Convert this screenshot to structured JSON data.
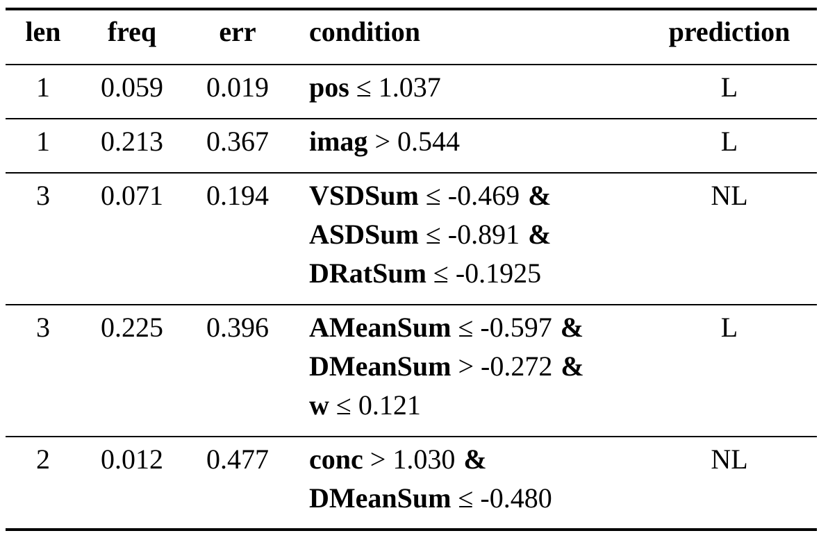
{
  "table": {
    "headers": [
      "len",
      "freq",
      "err",
      "condition",
      "prediction"
    ],
    "rows": [
      {
        "len": "1",
        "freq": "0.059",
        "err": "0.019",
        "condition": [
          {
            "feature": "pos",
            "op": "≤",
            "value": "1.037"
          }
        ],
        "prediction": "L"
      },
      {
        "len": "1",
        "freq": "0.213",
        "err": "0.367",
        "condition": [
          {
            "feature": "imag",
            "op": ">",
            "value": "0.544"
          }
        ],
        "prediction": "L"
      },
      {
        "len": "3",
        "freq": "0.071",
        "err": "0.194",
        "condition": [
          {
            "feature": "VSDSum",
            "op": "≤",
            "value": "-0.469",
            "and": "&"
          },
          {
            "feature": "ASDSum",
            "op": "≤",
            "value": "-0.891",
            "and": "&"
          },
          {
            "feature": "DRatSum",
            "op": "≤",
            "value": "-0.1925"
          }
        ],
        "prediction": "NL"
      },
      {
        "len": "3",
        "freq": "0.225",
        "err": "0.396",
        "condition": [
          {
            "feature": "AMeanSum",
            "op": "≤",
            "value": "-0.597",
            "and": "&"
          },
          {
            "feature": "DMeanSum",
            "op": ">",
            "value": "-0.272",
            "and": "&"
          },
          {
            "feature": "w",
            "op": "≤",
            "value": "0.121"
          }
        ],
        "prediction": "L"
      },
      {
        "len": "2",
        "freq": "0.012",
        "err": "0.477",
        "condition": [
          {
            "feature": "conc",
            "op": ">",
            "value": "1.030",
            "and": "&"
          },
          {
            "feature": "DMeanSum",
            "op": "≤",
            "value": "-0.480"
          }
        ],
        "prediction": "NL"
      }
    ]
  }
}
